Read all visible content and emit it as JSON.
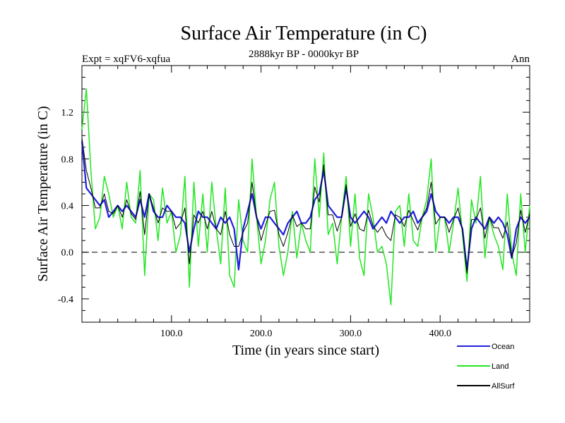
{
  "chart_data": {
    "type": "line",
    "title": "Surface Air Temperature (in C)",
    "subtitle_left": "Expt = xqFV6-xqfua",
    "subtitle_center": "2888kyr BP - 0000kyr BP",
    "subtitle_right": "Ann",
    "xlabel": "Time (in years since start)",
    "ylabel": "Surface Air Temperature (in C)",
    "xlim": [
      0,
      500
    ],
    "ylim": [
      -0.6,
      1.6
    ],
    "xticks": [
      {
        "v": 100,
        "label": "100.0"
      },
      {
        "v": 200,
        "label": "200.0"
      },
      {
        "v": 300,
        "label": "300.0"
      },
      {
        "v": 400,
        "label": "400.0"
      }
    ],
    "yticks": [
      {
        "v": -0.4,
        "label": "-0.4"
      },
      {
        "v": 0.0,
        "label": "0.0"
      },
      {
        "v": 0.4,
        "label": "0.4"
      },
      {
        "v": 0.8,
        "label": "0.8"
      },
      {
        "v": 1.2,
        "label": "1.2"
      }
    ],
    "reference_line": 0.0,
    "x": [
      0,
      5,
      10,
      15,
      20,
      25,
      30,
      35,
      40,
      45,
      50,
      55,
      60,
      65,
      70,
      75,
      80,
      85,
      90,
      95,
      100,
      105,
      110,
      115,
      120,
      125,
      130,
      135,
      140,
      145,
      150,
      155,
      160,
      165,
      170,
      175,
      180,
      185,
      190,
      195,
      200,
      205,
      210,
      215,
      220,
      225,
      230,
      235,
      240,
      245,
      250,
      255,
      260,
      265,
      270,
      275,
      280,
      285,
      290,
      295,
      300,
      305,
      310,
      315,
      320,
      325,
      330,
      335,
      340,
      345,
      350,
      355,
      360,
      365,
      370,
      375,
      380,
      385,
      390,
      395,
      400,
      405,
      410,
      415,
      420,
      425,
      430,
      435,
      440,
      445,
      450,
      455,
      460,
      465,
      470,
      475,
      480,
      485,
      490,
      495,
      500
    ],
    "series": [
      {
        "name": "Ocean",
        "color": "#1f1fdc",
        "values": [
          0.95,
          0.55,
          0.5,
          0.45,
          0.4,
          0.45,
          0.3,
          0.35,
          0.4,
          0.35,
          0.4,
          0.35,
          0.3,
          0.45,
          0.3,
          0.5,
          0.35,
          0.3,
          0.3,
          0.4,
          0.35,
          0.3,
          0.3,
          0.25,
          0.0,
          0.2,
          0.35,
          0.3,
          0.3,
          0.25,
          0.2,
          0.3,
          0.25,
          0.3,
          0.2,
          -0.15,
          0.2,
          0.35,
          0.5,
          0.3,
          0.2,
          0.3,
          0.3,
          0.25,
          0.2,
          0.15,
          0.25,
          0.3,
          0.35,
          0.25,
          0.25,
          0.3,
          0.45,
          0.5,
          0.7,
          0.4,
          0.35,
          0.3,
          0.3,
          0.55,
          0.3,
          0.25,
          0.3,
          0.35,
          0.3,
          0.2,
          0.25,
          0.3,
          0.25,
          0.35,
          0.3,
          0.25,
          0.3,
          0.3,
          0.35,
          0.25,
          0.3,
          0.35,
          0.5,
          0.35,
          0.3,
          0.3,
          0.25,
          0.3,
          0.3,
          0.2,
          -0.15,
          0.2,
          0.3,
          0.25,
          0.2,
          0.3,
          0.25,
          0.3,
          0.25,
          0.15,
          -0.05,
          0.2,
          0.3,
          0.25,
          0.3
        ]
      },
      {
        "name": "Land",
        "color": "#22e622",
        "values": [
          1.05,
          1.4,
          0.7,
          0.2,
          0.3,
          0.65,
          0.5,
          0.3,
          0.4,
          0.2,
          0.6,
          0.3,
          0.25,
          0.7,
          -0.2,
          0.5,
          0.45,
          0.1,
          0.55,
          0.25,
          0.35,
          0.0,
          0.15,
          0.65,
          -0.3,
          0.6,
          0.05,
          0.5,
          0.0,
          0.6,
          0.2,
          -0.1,
          0.55,
          -0.2,
          -0.3,
          0.45,
          0.1,
          0.0,
          0.8,
          0.3,
          -0.1,
          0.1,
          0.45,
          0.6,
          0.05,
          -0.2,
          0.0,
          0.35,
          -0.05,
          0.25,
          0.1,
          0.0,
          0.8,
          0.3,
          0.85,
          0.15,
          0.25,
          -0.1,
          0.3,
          0.65,
          0.05,
          0.5,
          -0.05,
          -0.2,
          0.5,
          0.3,
          0.0,
          0.05,
          -0.1,
          -0.45,
          0.35,
          0.4,
          0.05,
          0.5,
          0.1,
          0.05,
          0.3,
          0.45,
          0.8,
          0.0,
          0.3,
          0.3,
          0.0,
          0.25,
          0.55,
          0.15,
          -0.25,
          0.45,
          0.25,
          0.65,
          -0.05,
          0.3,
          0.15,
          0.05,
          -0.15,
          0.5,
          0.0,
          -0.2,
          0.5,
          0.0,
          0.4
        ]
      },
      {
        "name": "AllSurf",
        "color": "#000000",
        "values": [
          0.98,
          0.7,
          0.55,
          0.38,
          0.38,
          0.5,
          0.35,
          0.33,
          0.4,
          0.3,
          0.45,
          0.33,
          0.28,
          0.52,
          0.15,
          0.5,
          0.38,
          0.25,
          0.38,
          0.35,
          0.35,
          0.2,
          0.25,
          0.38,
          -0.1,
          0.32,
          0.25,
          0.35,
          0.2,
          0.35,
          0.2,
          0.15,
          0.35,
          0.15,
          0.05,
          0.05,
          0.17,
          0.25,
          0.6,
          0.3,
          0.1,
          0.23,
          0.35,
          0.36,
          0.15,
          0.05,
          0.17,
          0.32,
          0.22,
          0.25,
          0.2,
          0.2,
          0.56,
          0.43,
          0.75,
          0.32,
          0.32,
          0.18,
          0.3,
          0.58,
          0.22,
          0.33,
          0.2,
          0.18,
          0.36,
          0.23,
          0.17,
          0.22,
          0.14,
          0.1,
          0.32,
          0.3,
          0.22,
          0.36,
          0.27,
          0.19,
          0.3,
          0.38,
          0.6,
          0.24,
          0.3,
          0.3,
          0.17,
          0.28,
          0.38,
          0.18,
          -0.18,
          0.28,
          0.28,
          0.38,
          0.12,
          0.3,
          0.21,
          0.21,
          0.12,
          0.26,
          -0.04,
          0.08,
          0.36,
          0.17,
          0.33
        ]
      }
    ],
    "legend_position": "bottom-right"
  }
}
